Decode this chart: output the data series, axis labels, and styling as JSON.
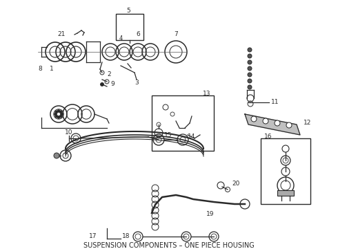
{
  "title": "SUSPENSION COMPONENTS – ONE PIECE HOUSING",
  "title_fontsize": 7.0,
  "bg_color": "#ffffff",
  "fig_width": 4.9,
  "fig_height": 3.6,
  "dpi": 100
}
